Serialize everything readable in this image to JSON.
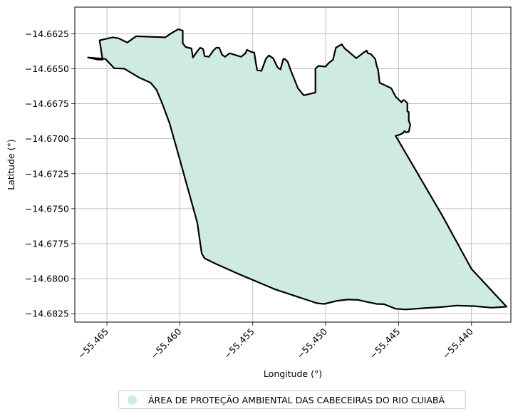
{
  "chart_data": {
    "type": "map",
    "xlabel": "Longitude (°)",
    "ylabel": "Latitude (°)",
    "xlim": [
      -55.4672,
      -55.4373
    ],
    "ylim": [
      -14.6831,
      -14.6606
    ],
    "grid": true,
    "x_ticks": [
      -55.465,
      -55.46,
      -55.455,
      -55.45,
      -55.445,
      -55.44
    ],
    "x_tick_labels": [
      "−55.465",
      "−55.460",
      "−55.455",
      "−55.450",
      "−55.445",
      "−55.440"
    ],
    "y_ticks": [
      -14.6625,
      -14.665,
      -14.6675,
      -14.67,
      -14.6725,
      -14.675,
      -14.6775,
      -14.68,
      -14.6825
    ],
    "y_tick_labels": [
      "−14.6625",
      "−14.6650",
      "−14.6675",
      "−14.6700",
      "−14.6725",
      "−14.6750",
      "−14.6775",
      "−14.6800",
      "−14.6825"
    ],
    "legend_position": "bottom-center",
    "fill_color": "#cfebdf",
    "edge_color": "#000000",
    "series": [
      {
        "name": "ÁREA DE PROTEÇÃO AMBIENTAL DAS CABECEIRAS DO RIO CUIABÁ",
        "polygon": [
          [
            -55.4655,
            -14.66297
          ],
          [
            -55.4646,
            -14.66276
          ],
          [
            -55.4642,
            -14.66283
          ],
          [
            -55.4636,
            -14.66313
          ],
          [
            -55.463,
            -14.66268
          ],
          [
            -55.461,
            -14.66276
          ],
          [
            -55.4605,
            -14.66241
          ],
          [
            -55.4601,
            -14.66218
          ],
          [
            -55.4598,
            -14.66228
          ],
          [
            -55.4598,
            -14.66318
          ],
          [
            -55.4596,
            -14.66345
          ],
          [
            -55.4592,
            -14.66355
          ],
          [
            -55.4591,
            -14.6642
          ],
          [
            -55.4588,
            -14.66375
          ],
          [
            -55.4586,
            -14.6635
          ],
          [
            -55.4584,
            -14.6636
          ],
          [
            -55.4583,
            -14.6641
          ],
          [
            -55.458,
            -14.66415
          ],
          [
            -55.4577,
            -14.6637
          ],
          [
            -55.4575,
            -14.6635
          ],
          [
            -55.4573,
            -14.6635
          ],
          [
            -55.4572,
            -14.66375
          ],
          [
            -55.4571,
            -14.664
          ],
          [
            -55.4569,
            -14.66415
          ],
          [
            -55.4566,
            -14.6639
          ],
          [
            -55.4564,
            -14.66395
          ],
          [
            -55.4561,
            -14.66405
          ],
          [
            -55.4558,
            -14.66415
          ],
          [
            -55.4555,
            -14.6639
          ],
          [
            -55.4554,
            -14.66365
          ],
          [
            -55.4551,
            -14.6638
          ],
          [
            -55.4549,
            -14.66385
          ],
          [
            -55.4548,
            -14.6645
          ],
          [
            -55.4547,
            -14.6651
          ],
          [
            -55.4544,
            -14.66515
          ],
          [
            -55.4541,
            -14.6643
          ],
          [
            -55.4539,
            -14.66405
          ],
          [
            -55.4536,
            -14.66425
          ],
          [
            -55.4533,
            -14.6649
          ],
          [
            -55.4531,
            -14.66505
          ],
          [
            -55.4529,
            -14.6643
          ],
          [
            -55.4528,
            -14.6643
          ],
          [
            -55.4526,
            -14.6645
          ],
          [
            -55.4524,
            -14.6651
          ],
          [
            -55.4519,
            -14.6664
          ],
          [
            -55.4515,
            -14.6669
          ],
          [
            -55.4507,
            -14.6667
          ],
          [
            -55.4507,
            -14.665
          ],
          [
            -55.4505,
            -14.6648
          ],
          [
            -55.45,
            -14.66485
          ],
          [
            -55.4498,
            -14.6646
          ],
          [
            -55.4495,
            -14.66435
          ],
          [
            -55.4493,
            -14.6635
          ],
          [
            -55.4489,
            -14.66325
          ],
          [
            -55.4487,
            -14.66355
          ],
          [
            -55.4484,
            -14.6638
          ],
          [
            -55.4479,
            -14.66425
          ],
          [
            -55.4474,
            -14.66385
          ],
          [
            -55.4472,
            -14.6637
          ],
          [
            -55.4471,
            -14.6639
          ],
          [
            -55.4469,
            -14.66395
          ],
          [
            -55.4466,
            -14.6643
          ],
          [
            -55.4465,
            -14.6648
          ],
          [
            -55.4464,
            -14.6651
          ],
          [
            -55.4463,
            -14.666
          ],
          [
            -55.4459,
            -14.6662
          ],
          [
            -55.4455,
            -14.6664
          ],
          [
            -55.4452,
            -14.667
          ],
          [
            -55.4448,
            -14.6674
          ],
          [
            -55.4447,
            -14.66725
          ],
          [
            -55.4446,
            -14.66725
          ],
          [
            -55.4444,
            -14.66745
          ],
          [
            -55.4444,
            -14.66805
          ],
          [
            -55.4443,
            -14.6681
          ],
          [
            -55.4443,
            -14.6687
          ],
          [
            -55.4442,
            -14.669
          ],
          [
            -55.4443,
            -14.6695
          ],
          [
            -55.4445,
            -14.66955
          ],
          [
            -55.4446,
            -14.66945
          ],
          [
            -55.4447,
            -14.6696
          ],
          [
            -55.4449,
            -14.6697
          ],
          [
            -55.4452,
            -14.6698
          ],
          [
            -55.442,
            -14.6755
          ],
          [
            -55.44,
            -14.6793
          ],
          [
            -55.4376,
            -14.682
          ],
          [
            -55.4386,
            -14.68207
          ],
          [
            -55.4398,
            -14.68196
          ],
          [
            -55.441,
            -14.68192
          ],
          [
            -55.442,
            -14.68202
          ],
          [
            -55.4432,
            -14.6821
          ],
          [
            -55.4445,
            -14.6822
          ],
          [
            -55.4452,
            -14.68215
          ],
          [
            -55.446,
            -14.68182
          ],
          [
            -55.4465,
            -14.6818
          ],
          [
            -55.4471,
            -14.68167
          ],
          [
            -55.4478,
            -14.68151
          ],
          [
            -55.4485,
            -14.68149
          ],
          [
            -55.4492,
            -14.68158
          ],
          [
            -55.4501,
            -14.6818
          ],
          [
            -55.4506,
            -14.68175
          ],
          [
            -55.4535,
            -14.68075
          ],
          [
            -55.456,
            -14.67965
          ],
          [
            -55.4575,
            -14.67895
          ],
          [
            -55.4583,
            -14.67855
          ],
          [
            -55.4585,
            -14.6782
          ],
          [
            -55.4588,
            -14.676
          ],
          [
            -55.46,
            -14.6715
          ],
          [
            -55.4607,
            -14.6689
          ],
          [
            -55.4612,
            -14.6675
          ],
          [
            -55.4616,
            -14.6665
          ],
          [
            -55.462,
            -14.666
          ],
          [
            -55.4628,
            -14.66563
          ],
          [
            -55.4638,
            -14.665
          ],
          [
            -55.4645,
            -14.66497
          ],
          [
            -55.4651,
            -14.6643
          ],
          [
            -55.4663,
            -14.6642
          ],
          [
            -55.4656,
            -14.66435
          ],
          [
            -55.4653,
            -14.66435
          ]
        ]
      }
    ]
  }
}
